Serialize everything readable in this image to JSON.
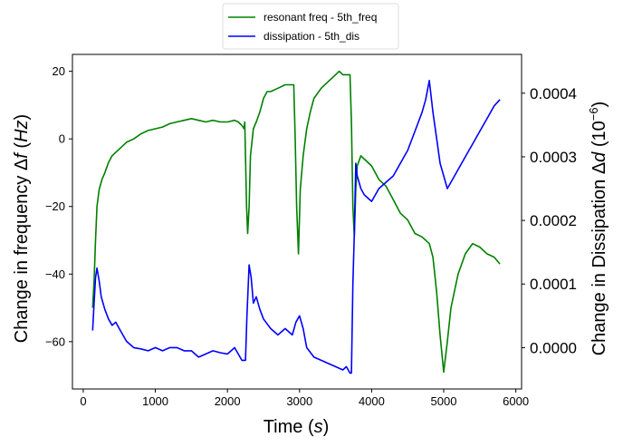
{
  "chart_data": {
    "type": "line",
    "title": "",
    "xlabel": "Time ($s$)",
    "ylabel_left": "Change in frequency $\\Delta f\\,(Hz)$",
    "ylabel_right": "Change in Dissipation $\\Delta d\\;(10^{-6})$",
    "xlim": [
      -150,
      6080
    ],
    "ylim_left": [
      -74,
      25
    ],
    "ylim_right": [
      -6.5e-05,
      0.000461
    ],
    "xticks": [
      0,
      1000,
      2000,
      3000,
      4000,
      5000,
      6000
    ],
    "yticks_left": [
      -60,
      -40,
      -20,
      0,
      20
    ],
    "yticks_right": [
      0.0,
      0.0001,
      0.0002,
      0.0003,
      0.0004
    ],
    "yticks_right_labels": [
      "0.0000",
      "0.0001",
      "0.0002",
      "0.0003",
      "0.0004"
    ],
    "xticks_labels": [
      "0",
      "1000",
      "2000",
      "3000",
      "4000",
      "5000",
      "6000"
    ],
    "yticks_left_labels": [
      "−60",
      "−40",
      "−20",
      "0",
      "20"
    ],
    "grid": false,
    "legend_position": "top-center, outside",
    "series": [
      {
        "name": "resonant freq - 5th_freq",
        "axis": "left",
        "color": "#008000",
        "points": [
          [
            130,
            -50
          ],
          [
            150,
            -42
          ],
          [
            170,
            -30
          ],
          [
            190,
            -20
          ],
          [
            220,
            -15
          ],
          [
            260,
            -12
          ],
          [
            300,
            -10
          ],
          [
            350,
            -7
          ],
          [
            400,
            -5
          ],
          [
            500,
            -3
          ],
          [
            600,
            -1
          ],
          [
            700,
            0
          ],
          [
            800,
            1.5
          ],
          [
            900,
            2.5
          ],
          [
            1000,
            3
          ],
          [
            1100,
            3.5
          ],
          [
            1200,
            4.5
          ],
          [
            1300,
            5
          ],
          [
            1400,
            5.5
          ],
          [
            1500,
            6
          ],
          [
            1600,
            5.5
          ],
          [
            1700,
            5
          ],
          [
            1800,
            5.5
          ],
          [
            1900,
            5
          ],
          [
            2000,
            5
          ],
          [
            2100,
            5.5
          ],
          [
            2150,
            5
          ],
          [
            2200,
            4
          ],
          [
            2230,
            3
          ],
          [
            2240,
            5
          ],
          [
            2250,
            -5
          ],
          [
            2265,
            -20
          ],
          [
            2280,
            -28
          ],
          [
            2300,
            -20
          ],
          [
            2320,
            -5
          ],
          [
            2360,
            3
          ],
          [
            2400,
            5
          ],
          [
            2450,
            8
          ],
          [
            2500,
            12
          ],
          [
            2550,
            14
          ],
          [
            2600,
            14
          ],
          [
            2700,
            15
          ],
          [
            2800,
            16
          ],
          [
            2850,
            16
          ],
          [
            2900,
            16
          ],
          [
            2920,
            16
          ],
          [
            2940,
            0
          ],
          [
            2960,
            -20
          ],
          [
            2985,
            -34
          ],
          [
            3010,
            -15
          ],
          [
            3050,
            -5
          ],
          [
            3100,
            3
          ],
          [
            3150,
            8
          ],
          [
            3200,
            12
          ],
          [
            3300,
            15
          ],
          [
            3400,
            17
          ],
          [
            3500,
            19
          ],
          [
            3550,
            20
          ],
          [
            3600,
            19
          ],
          [
            3650,
            19
          ],
          [
            3700,
            19
          ],
          [
            3720,
            5
          ],
          [
            3740,
            -20
          ],
          [
            3760,
            -29
          ],
          [
            3780,
            -15
          ],
          [
            3800,
            -8
          ],
          [
            3850,
            -5
          ],
          [
            3900,
            -6
          ],
          [
            4000,
            -8
          ],
          [
            4100,
            -12
          ],
          [
            4200,
            -14
          ],
          [
            4300,
            -18
          ],
          [
            4400,
            -22
          ],
          [
            4500,
            -24
          ],
          [
            4600,
            -28
          ],
          [
            4700,
            -29
          ],
          [
            4800,
            -31
          ],
          [
            4850,
            -35
          ],
          [
            4900,
            -45
          ],
          [
            4950,
            -58
          ],
          [
            5000,
            -69
          ],
          [
            5050,
            -60
          ],
          [
            5100,
            -50
          ],
          [
            5200,
            -40
          ],
          [
            5300,
            -34
          ],
          [
            5400,
            -31
          ],
          [
            5500,
            -32
          ],
          [
            5600,
            -34
          ],
          [
            5700,
            -35
          ],
          [
            5780,
            -37
          ]
        ]
      },
      {
        "name": "dissipation - 5th_dis",
        "axis": "right",
        "color": "#0000ff",
        "points": [
          [
            130,
            2.7e-05
          ],
          [
            150,
            7e-05
          ],
          [
            170,
            0.00011
          ],
          [
            190,
            0.000125
          ],
          [
            220,
            0.000105
          ],
          [
            250,
            8e-05
          ],
          [
            300,
            6e-05
          ],
          [
            350,
            4.5e-05
          ],
          [
            400,
            3.5e-05
          ],
          [
            450,
            4e-05
          ],
          [
            500,
            3e-05
          ],
          [
            600,
            1e-05
          ],
          [
            700,
            0.0
          ],
          [
            800,
            -2e-06
          ],
          [
            900,
            -5e-06
          ],
          [
            1000,
            0.0
          ],
          [
            1100,
            -5e-06
          ],
          [
            1200,
            0.0
          ],
          [
            1300,
            0.0
          ],
          [
            1400,
            -5e-06
          ],
          [
            1500,
            -5e-06
          ],
          [
            1600,
            -1.5e-05
          ],
          [
            1700,
            -1e-05
          ],
          [
            1800,
            -5e-06
          ],
          [
            1900,
            -8e-06
          ],
          [
            2000,
            -1e-05
          ],
          [
            2100,
            0.0
          ],
          [
            2150,
            -1e-05
          ],
          [
            2200,
            -2e-05
          ],
          [
            2250,
            -2e-05
          ],
          [
            2270,
            5e-05
          ],
          [
            2300,
            0.00013
          ],
          [
            2330,
            0.00011
          ],
          [
            2360,
            7e-05
          ],
          [
            2400,
            8e-05
          ],
          [
            2450,
            6e-05
          ],
          [
            2500,
            4.5e-05
          ],
          [
            2600,
            3e-05
          ],
          [
            2700,
            2e-05
          ],
          [
            2800,
            3e-05
          ],
          [
            2900,
            2e-05
          ],
          [
            2950,
            4e-05
          ],
          [
            3000,
            5e-05
          ],
          [
            3050,
            3e-05
          ],
          [
            3100,
            0.0
          ],
          [
            3200,
            -1.5e-05
          ],
          [
            3300,
            -2e-05
          ],
          [
            3400,
            -2.5e-05
          ],
          [
            3500,
            -3e-05
          ],
          [
            3600,
            -3.5e-05
          ],
          [
            3650,
            -3e-05
          ],
          [
            3700,
            -4e-05
          ],
          [
            3720,
            -4e-05
          ],
          [
            3740,
            0.0001
          ],
          [
            3760,
            0.00018
          ],
          [
            3780,
            0.00029
          ],
          [
            3800,
            0.00027
          ],
          [
            3850,
            0.00025
          ],
          [
            3900,
            0.00024
          ],
          [
            4000,
            0.00023
          ],
          [
            4100,
            0.00025
          ],
          [
            4200,
            0.00026
          ],
          [
            4300,
            0.00027
          ],
          [
            4400,
            0.00029
          ],
          [
            4500,
            0.00031
          ],
          [
            4600,
            0.00034
          ],
          [
            4700,
            0.00037
          ],
          [
            4750,
            0.00039
          ],
          [
            4800,
            0.00042
          ],
          [
            4850,
            0.00037
          ],
          [
            4900,
            0.00033
          ],
          [
            4950,
            0.00029
          ],
          [
            5000,
            0.00027
          ],
          [
            5050,
            0.00025
          ],
          [
            5100,
            0.00026
          ],
          [
            5200,
            0.00028
          ],
          [
            5300,
            0.0003
          ],
          [
            5400,
            0.00032
          ],
          [
            5500,
            0.00034
          ],
          [
            5600,
            0.00036
          ],
          [
            5700,
            0.00038
          ],
          [
            5780,
            0.00039
          ]
        ]
      }
    ]
  }
}
